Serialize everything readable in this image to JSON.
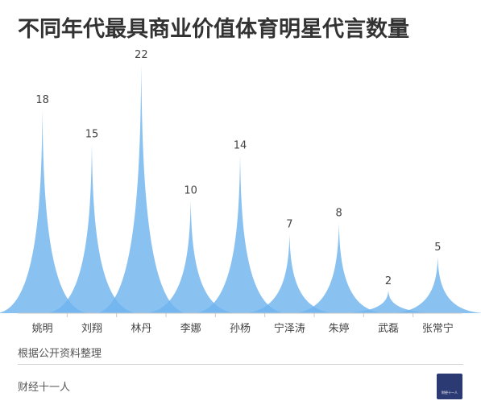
{
  "title": "不同年代最具商业价值体育明星代言数量",
  "source_note": "根据公开资料整理",
  "brand": "财经十一人",
  "logo_text": "财经十一人",
  "colors": {
    "peak": "#6fb3ee",
    "axis": "#c8c8c8",
    "label": "#444444",
    "logo_bg": "#2c3a73"
  },
  "chart_data": {
    "type": "area",
    "categories": [
      "姚明",
      "刘翔",
      "林丹",
      "李娜",
      "孙杨",
      "宁泽涛",
      "朱婷",
      "武磊",
      "张常宁"
    ],
    "values": [
      18,
      15,
      22,
      10,
      14,
      7,
      8,
      2,
      5
    ],
    "ylim": [
      0,
      22
    ]
  }
}
